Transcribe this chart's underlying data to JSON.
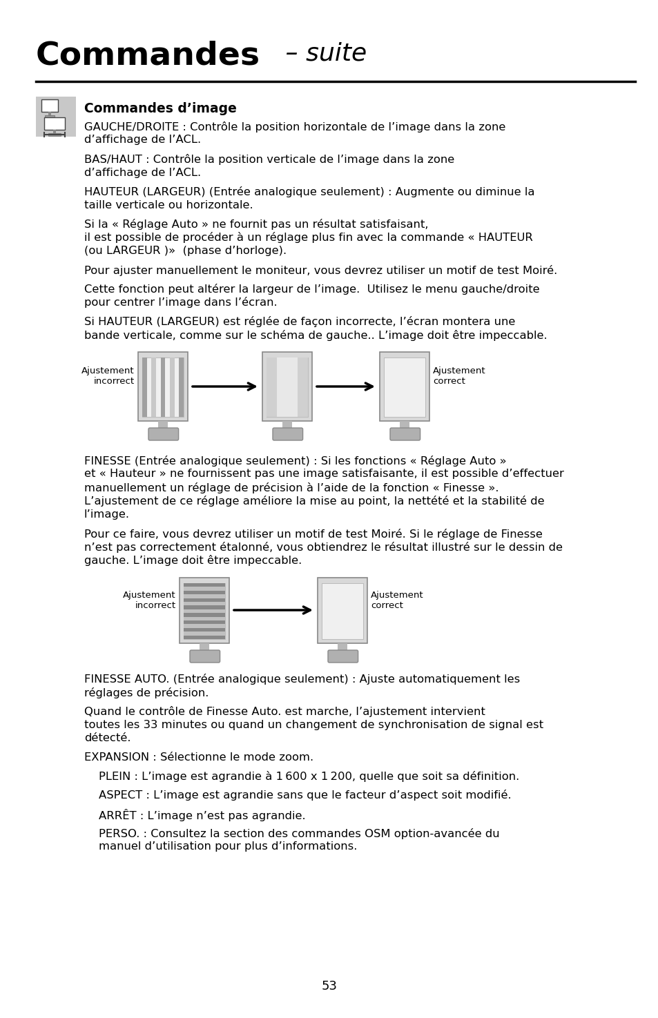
{
  "title_bold": "Commandes",
  "title_italic": " – suite",
  "section_title": "Commandes d’image",
  "bg_color": "#ffffff",
  "text_color": "#000000",
  "body_paragraphs": [
    "GAUCHE/DROITE : Contrôle la position horizontale de l’image dans la zone\nd’affichage de l’ACL.",
    "BAS/HAUT : Contrôle la position verticale de l’image dans la zone\nd’affichage de l’ACL.",
    "HAUTEUR (LARGEUR) (Entrée analogique seulement) : Augmente ou diminue la\ntaille verticale ou horizontale.",
    "Si la « Réglage Auto » ne fournit pas un résultat satisfaisant,\nil est possible de procéder à un réglage plus fin avec la commande « HAUTEUR\n(ou LARGEUR )»  (phase d’horloge).",
    "Pour ajuster manuellement le moniteur, vous devrez utiliser un motif de test Moiré.",
    "Cette fonction peut altérer la largeur de l’image.  Utilisez le menu gauche/droite\npour centrer l’image dans l’écran.",
    "Si HAUTEUR (LARGEUR) est réglée de façon incorrecte, l’écran montera une\nbande verticale, comme sur le schéma de gauche.. L’image doit être impeccable."
  ],
  "body_paragraphs2": [
    "FINESSE (Entrée analogique seulement) : Si les fonctions « Réglage Auto »\net « Hauteur » ne fournissent pas une image satisfaisante, il est possible d’effectuer\nmanuellement un réglage de précision à l’aide de la fonction « Finesse ».\nL’ajustement de ce réglage améliore la mise au point, la nettété et la stabilité de\nl’image.",
    "Pour ce faire, vous devrez utiliser un motif de test Moiré. Si le réglage de Finesse\nn’est pas correctement étalonné, vous obtiendrez le résultat illustré sur le dessin de\ngauche. L’image doit être impeccable.",
    "FINESSE AUTO. (Entrée analogique seulement) : Ajuste automatiquement les\nréglages de précision.",
    "Quand le contrôle de Finesse Auto. est marche, l’ajustement intervient\ntoutes les 33 minutes ou quand un changement de synchronisation de signal est\ndétecté.",
    "EXPANSION : Sélectionne le mode zoom.",
    "    PLEIN : L’image est agrandie à 1 600 x 1 200, quelle que soit sa définition.",
    "    ASPECT : L’image est agrandie sans que le facteur d’aspect soit modifié.",
    "    ARRÊT : L’image n’est pas agrandie.",
    "    PERSO. : Consultez la section des commandes OSM option-avancée du\n    manuel d’utilisation pour plus d’informations."
  ],
  "page_number": "53"
}
